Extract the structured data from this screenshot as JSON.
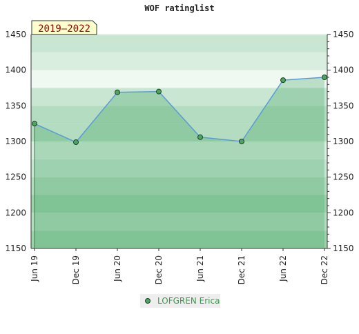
{
  "chart_data": {
    "type": "line",
    "title": "WOF ratinglist",
    "badge": "2019–2022",
    "categories": [
      "Jun 19",
      "Dec 19",
      "Jun 20",
      "Dec 20",
      "Jun 21",
      "Dec 21",
      "Jun 22",
      "Dec 22"
    ],
    "series": [
      {
        "name": "LOFGREN Erica",
        "color": "#5b9bd5",
        "values": [
          1325,
          1299,
          1369,
          1370,
          1306,
          1300,
          1386,
          1390
        ]
      }
    ],
    "ylim": [
      1150,
      1450
    ],
    "yticks": [
      1150,
      1200,
      1250,
      1300,
      1350,
      1400,
      1450
    ]
  }
}
